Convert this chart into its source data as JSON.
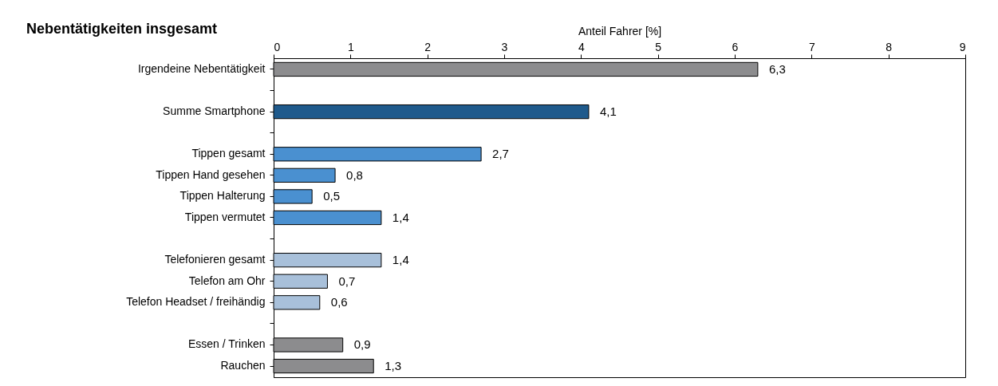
{
  "chart_data": {
    "type": "bar",
    "orientation": "horizontal",
    "title": "Nebentätigkeiten insgesamt",
    "xlabel": "Anteil Fahrer [%]",
    "categories": [
      "Irgendeine Nebentätigkeit",
      null,
      "Summe Smartphone",
      null,
      "Tippen gesamt",
      "Tippen  Hand gesehen",
      "Tippen Halterung",
      "Tippen vermutet",
      null,
      "Telefonieren gesamt",
      "Telefon am Ohr",
      "Telefon Headset /  freihändig",
      null,
      "Essen / Trinken",
      "Rauchen"
    ],
    "values": [
      6.3,
      null,
      4.1,
      null,
      2.7,
      0.8,
      0.5,
      1.4,
      null,
      1.4,
      0.7,
      0.6,
      null,
      0.9,
      1.3
    ],
    "value_labels": [
      "6,3",
      null,
      "4,1",
      null,
      "2,7",
      "0,8",
      "0,5",
      "1,4",
      null,
      "1,4",
      "0,7",
      "0,6",
      null,
      "0,9",
      "1,3"
    ],
    "colors": [
      "#8c8c8e",
      "#8c8c8e",
      "#1f5a8c",
      "#8c8c8e",
      "#4a90d0",
      "#4a90d0",
      "#4a90d0",
      "#4a90d0",
      "#8c8c8e",
      "#a8c0da",
      "#a8c0da",
      "#a8c0da",
      "#8c8c8e",
      "#8c8c8e",
      "#8c8c8e"
    ],
    "xlim": [
      0,
      9
    ],
    "xticks": [
      0,
      1,
      2,
      3,
      4,
      5,
      6,
      7,
      8,
      9
    ],
    "grid": false
  }
}
